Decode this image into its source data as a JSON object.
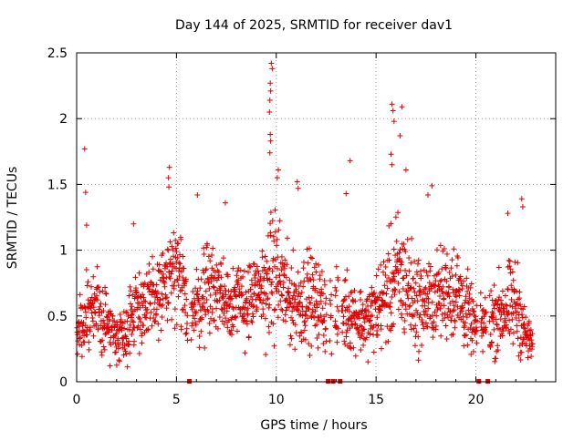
{
  "chart_data": {
    "type": "scatter",
    "title": "Day 144 of 2025, SRMTID for receiver dav1",
    "xlabel": "GPS time / hours",
    "ylabel": "SRMTID / TECUs",
    "xlim": [
      0,
      24
    ],
    "ylim": [
      0,
      2.5
    ],
    "x_ticks": [
      0,
      5,
      10,
      15,
      20
    ],
    "x_tick_labels": [
      "0",
      "5",
      "10",
      "15",
      "20"
    ],
    "y_ticks": [
      0,
      0.5,
      1,
      1.5,
      2,
      2.5
    ],
    "y_tick_labels": [
      "0",
      "0.5",
      "1",
      "1.5",
      "2",
      "2.5"
    ],
    "grid": true,
    "marker": "plus",
    "color": "#e00000",
    "data_gaps_hours": [
      5.65,
      12.6,
      12.85,
      13.2,
      20.15,
      20.6
    ],
    "envelope": {
      "description": "Approximate median SRMTID level and spread vs. GPS hour, estimated from the point cloud",
      "hours": [
        0,
        0.5,
        1,
        1.5,
        2,
        2.5,
        3,
        3.5,
        4,
        4.5,
        5,
        5.5,
        6,
        6.5,
        7,
        7.5,
        8,
        8.5,
        9,
        9.5,
        10,
        10.5,
        11,
        11.5,
        12,
        12.5,
        13,
        13.5,
        14,
        14.5,
        15,
        15.5,
        16,
        16.5,
        17,
        17.5,
        18,
        18.5,
        19,
        19.5,
        20,
        20.5,
        21,
        21.5,
        22,
        22.5,
        23
      ],
      "median": [
        0.3,
        0.5,
        0.55,
        0.45,
        0.35,
        0.4,
        0.6,
        0.55,
        0.65,
        0.75,
        0.8,
        0.6,
        0.55,
        0.75,
        0.7,
        0.65,
        0.6,
        0.6,
        0.65,
        0.75,
        0.85,
        0.65,
        0.6,
        0.65,
        0.6,
        0.55,
        0.5,
        0.55,
        0.5,
        0.45,
        0.55,
        0.65,
        0.8,
        0.75,
        0.6,
        0.6,
        0.65,
        0.7,
        0.7,
        0.55,
        0.4,
        0.45,
        0.5,
        0.55,
        0.6,
        0.35,
        0.25
      ],
      "spread": [
        0.15,
        0.25,
        0.25,
        0.2,
        0.15,
        0.2,
        0.25,
        0.25,
        0.25,
        0.3,
        0.35,
        0.3,
        0.25,
        0.3,
        0.3,
        0.25,
        0.25,
        0.25,
        0.25,
        0.35,
        0.4,
        0.3,
        0.25,
        0.3,
        0.25,
        0.25,
        0.25,
        0.25,
        0.2,
        0.2,
        0.25,
        0.3,
        0.4,
        0.35,
        0.3,
        0.25,
        0.25,
        0.3,
        0.3,
        0.25,
        0.15,
        0.2,
        0.25,
        0.25,
        0.3,
        0.15,
        0.1
      ]
    },
    "spikes": [
      {
        "x": 0.4,
        "y": 1.77
      },
      {
        "x": 0.45,
        "y": 1.44
      },
      {
        "x": 0.5,
        "y": 1.19
      },
      {
        "x": 4.65,
        "y": 1.63
      },
      {
        "x": 4.6,
        "y": 1.55
      },
      {
        "x": 4.62,
        "y": 1.48
      },
      {
        "x": 9.75,
        "y": 2.42
      },
      {
        "x": 9.8,
        "y": 2.38
      },
      {
        "x": 9.7,
        "y": 2.27
      },
      {
        "x": 9.72,
        "y": 2.21
      },
      {
        "x": 9.68,
        "y": 2.14
      },
      {
        "x": 9.66,
        "y": 2.05
      },
      {
        "x": 9.7,
        "y": 1.88
      },
      {
        "x": 9.72,
        "y": 1.83
      },
      {
        "x": 9.68,
        "y": 1.74
      },
      {
        "x": 10.1,
        "y": 1.61
      },
      {
        "x": 10.05,
        "y": 1.55
      },
      {
        "x": 11.05,
        "y": 1.52
      },
      {
        "x": 11.1,
        "y": 1.47
      },
      {
        "x": 13.7,
        "y": 1.68
      },
      {
        "x": 13.5,
        "y": 1.43
      },
      {
        "x": 15.8,
        "y": 2.11
      },
      {
        "x": 15.85,
        "y": 2.06
      },
      {
        "x": 15.9,
        "y": 1.98
      },
      {
        "x": 16.3,
        "y": 2.09
      },
      {
        "x": 16.2,
        "y": 1.87
      },
      {
        "x": 15.75,
        "y": 1.73
      },
      {
        "x": 15.8,
        "y": 1.65
      },
      {
        "x": 16.5,
        "y": 1.61
      },
      {
        "x": 17.8,
        "y": 1.49
      },
      {
        "x": 17.6,
        "y": 1.42
      },
      {
        "x": 22.3,
        "y": 1.39
      },
      {
        "x": 22.35,
        "y": 1.33
      },
      {
        "x": 21.6,
        "y": 1.28
      },
      {
        "x": 7.45,
        "y": 1.36
      },
      {
        "x": 6.05,
        "y": 1.42
      },
      {
        "x": 2.85,
        "y": 1.2
      }
    ]
  }
}
